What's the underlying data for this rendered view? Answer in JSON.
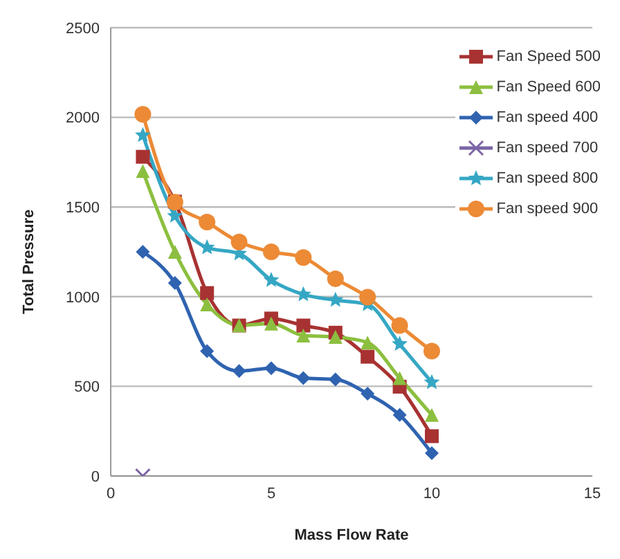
{
  "chart_data": {
    "type": "line",
    "xlabel": "Mass Flow Rate",
    "ylabel": "Total Pressure",
    "x": [
      1,
      2,
      3,
      4,
      5,
      6,
      7,
      8,
      9,
      10
    ],
    "xlim": [
      0,
      15
    ],
    "xticks": [
      0,
      5,
      10,
      15
    ],
    "ylim": [
      0,
      2500
    ],
    "yticks": [
      0,
      500,
      1000,
      1500,
      2000,
      2500
    ],
    "grid": "y",
    "legend": "top right",
    "series": [
      {
        "name": "Fan Speed 500",
        "color": "#a83232",
        "marker": "square",
        "values": [
          1780,
          1530,
          1020,
          839,
          878,
          839,
          799,
          665,
          498,
          222
        ]
      },
      {
        "name": "Fan Speed 600",
        "color": "#8cbf3f",
        "marker": "triangle",
        "values": [
          1700,
          1250,
          957,
          840,
          850,
          783,
          775,
          744,
          546,
          340
        ]
      },
      {
        "name": "Fan speed 400",
        "color": "#2f63b0",
        "marker": "diamond",
        "values": [
          1250,
          1076,
          696,
          585,
          601,
          546,
          538,
          459,
          340,
          127
        ]
      },
      {
        "name": "Fan speed 700",
        "color": "#7a64a6",
        "marker": "cross",
        "values": [
          0,
          null,
          null,
          null,
          null,
          null,
          null,
          null,
          null,
          null
        ]
      },
      {
        "name": "Fan speed 800",
        "color": "#35a7c4",
        "marker": "star",
        "values": [
          1900,
          1450,
          1274,
          1240,
          1092,
          1012,
          981,
          957,
          736,
          522
        ]
      },
      {
        "name": "Fan speed 900",
        "color": "#ec8a35",
        "marker": "circle",
        "values": [
          2017,
          1527,
          1416,
          1305,
          1250,
          1218,
          1100,
          997,
          839,
          696
        ]
      }
    ]
  }
}
